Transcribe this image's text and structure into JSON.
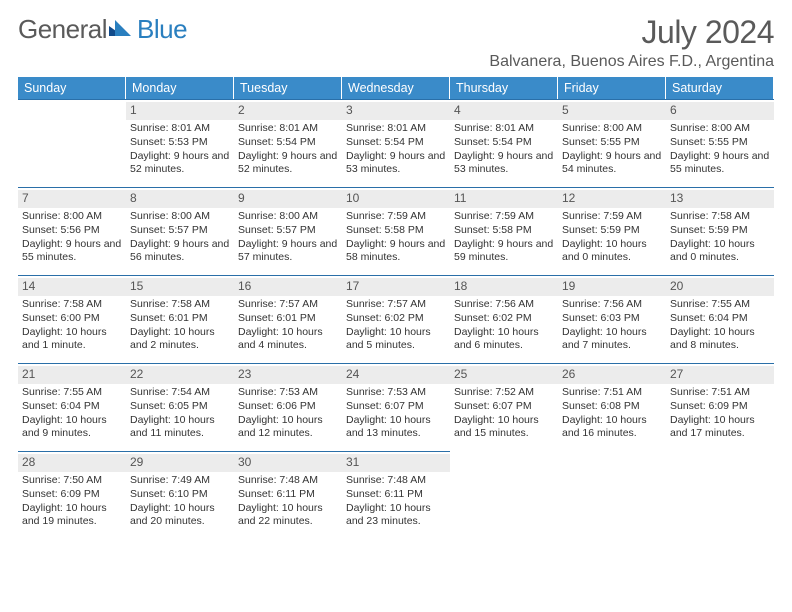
{
  "logo": {
    "text1": "General",
    "text2": "Blue"
  },
  "header": {
    "month_title": "July 2024",
    "location": "Balvanera, Buenos Aires F.D., Argentina"
  },
  "colors": {
    "header_bg": "#3a8bc9",
    "border": "#2a6fa8",
    "daynum_bg": "#ececec",
    "text": "#333333",
    "logo_dark": "#114a8a",
    "logo_light": "#2a7fbf"
  },
  "days_of_week": [
    "Sunday",
    "Monday",
    "Tuesday",
    "Wednesday",
    "Thursday",
    "Friday",
    "Saturday"
  ],
  "weeks": [
    [
      null,
      {
        "n": "1",
        "sr": "Sunrise: 8:01 AM",
        "ss": "Sunset: 5:53 PM",
        "dl": "Daylight: 9 hours and 52 minutes."
      },
      {
        "n": "2",
        "sr": "Sunrise: 8:01 AM",
        "ss": "Sunset: 5:54 PM",
        "dl": "Daylight: 9 hours and 52 minutes."
      },
      {
        "n": "3",
        "sr": "Sunrise: 8:01 AM",
        "ss": "Sunset: 5:54 PM",
        "dl": "Daylight: 9 hours and 53 minutes."
      },
      {
        "n": "4",
        "sr": "Sunrise: 8:01 AM",
        "ss": "Sunset: 5:54 PM",
        "dl": "Daylight: 9 hours and 53 minutes."
      },
      {
        "n": "5",
        "sr": "Sunrise: 8:00 AM",
        "ss": "Sunset: 5:55 PM",
        "dl": "Daylight: 9 hours and 54 minutes."
      },
      {
        "n": "6",
        "sr": "Sunrise: 8:00 AM",
        "ss": "Sunset: 5:55 PM",
        "dl": "Daylight: 9 hours and 55 minutes."
      }
    ],
    [
      {
        "n": "7",
        "sr": "Sunrise: 8:00 AM",
        "ss": "Sunset: 5:56 PM",
        "dl": "Daylight: 9 hours and 55 minutes."
      },
      {
        "n": "8",
        "sr": "Sunrise: 8:00 AM",
        "ss": "Sunset: 5:57 PM",
        "dl": "Daylight: 9 hours and 56 minutes."
      },
      {
        "n": "9",
        "sr": "Sunrise: 8:00 AM",
        "ss": "Sunset: 5:57 PM",
        "dl": "Daylight: 9 hours and 57 minutes."
      },
      {
        "n": "10",
        "sr": "Sunrise: 7:59 AM",
        "ss": "Sunset: 5:58 PM",
        "dl": "Daylight: 9 hours and 58 minutes."
      },
      {
        "n": "11",
        "sr": "Sunrise: 7:59 AM",
        "ss": "Sunset: 5:58 PM",
        "dl": "Daylight: 9 hours and 59 minutes."
      },
      {
        "n": "12",
        "sr": "Sunrise: 7:59 AM",
        "ss": "Sunset: 5:59 PM",
        "dl": "Daylight: 10 hours and 0 minutes."
      },
      {
        "n": "13",
        "sr": "Sunrise: 7:58 AM",
        "ss": "Sunset: 5:59 PM",
        "dl": "Daylight: 10 hours and 0 minutes."
      }
    ],
    [
      {
        "n": "14",
        "sr": "Sunrise: 7:58 AM",
        "ss": "Sunset: 6:00 PM",
        "dl": "Daylight: 10 hours and 1 minute."
      },
      {
        "n": "15",
        "sr": "Sunrise: 7:58 AM",
        "ss": "Sunset: 6:01 PM",
        "dl": "Daylight: 10 hours and 2 minutes."
      },
      {
        "n": "16",
        "sr": "Sunrise: 7:57 AM",
        "ss": "Sunset: 6:01 PM",
        "dl": "Daylight: 10 hours and 4 minutes."
      },
      {
        "n": "17",
        "sr": "Sunrise: 7:57 AM",
        "ss": "Sunset: 6:02 PM",
        "dl": "Daylight: 10 hours and 5 minutes."
      },
      {
        "n": "18",
        "sr": "Sunrise: 7:56 AM",
        "ss": "Sunset: 6:02 PM",
        "dl": "Daylight: 10 hours and 6 minutes."
      },
      {
        "n": "19",
        "sr": "Sunrise: 7:56 AM",
        "ss": "Sunset: 6:03 PM",
        "dl": "Daylight: 10 hours and 7 minutes."
      },
      {
        "n": "20",
        "sr": "Sunrise: 7:55 AM",
        "ss": "Sunset: 6:04 PM",
        "dl": "Daylight: 10 hours and 8 minutes."
      }
    ],
    [
      {
        "n": "21",
        "sr": "Sunrise: 7:55 AM",
        "ss": "Sunset: 6:04 PM",
        "dl": "Daylight: 10 hours and 9 minutes."
      },
      {
        "n": "22",
        "sr": "Sunrise: 7:54 AM",
        "ss": "Sunset: 6:05 PM",
        "dl": "Daylight: 10 hours and 11 minutes."
      },
      {
        "n": "23",
        "sr": "Sunrise: 7:53 AM",
        "ss": "Sunset: 6:06 PM",
        "dl": "Daylight: 10 hours and 12 minutes."
      },
      {
        "n": "24",
        "sr": "Sunrise: 7:53 AM",
        "ss": "Sunset: 6:07 PM",
        "dl": "Daylight: 10 hours and 13 minutes."
      },
      {
        "n": "25",
        "sr": "Sunrise: 7:52 AM",
        "ss": "Sunset: 6:07 PM",
        "dl": "Daylight: 10 hours and 15 minutes."
      },
      {
        "n": "26",
        "sr": "Sunrise: 7:51 AM",
        "ss": "Sunset: 6:08 PM",
        "dl": "Daylight: 10 hours and 16 minutes."
      },
      {
        "n": "27",
        "sr": "Sunrise: 7:51 AM",
        "ss": "Sunset: 6:09 PM",
        "dl": "Daylight: 10 hours and 17 minutes."
      }
    ],
    [
      {
        "n": "28",
        "sr": "Sunrise: 7:50 AM",
        "ss": "Sunset: 6:09 PM",
        "dl": "Daylight: 10 hours and 19 minutes."
      },
      {
        "n": "29",
        "sr": "Sunrise: 7:49 AM",
        "ss": "Sunset: 6:10 PM",
        "dl": "Daylight: 10 hours and 20 minutes."
      },
      {
        "n": "30",
        "sr": "Sunrise: 7:48 AM",
        "ss": "Sunset: 6:11 PM",
        "dl": "Daylight: 10 hours and 22 minutes."
      },
      {
        "n": "31",
        "sr": "Sunrise: 7:48 AM",
        "ss": "Sunset: 6:11 PM",
        "dl": "Daylight: 10 hours and 23 minutes."
      },
      null,
      null,
      null
    ]
  ]
}
